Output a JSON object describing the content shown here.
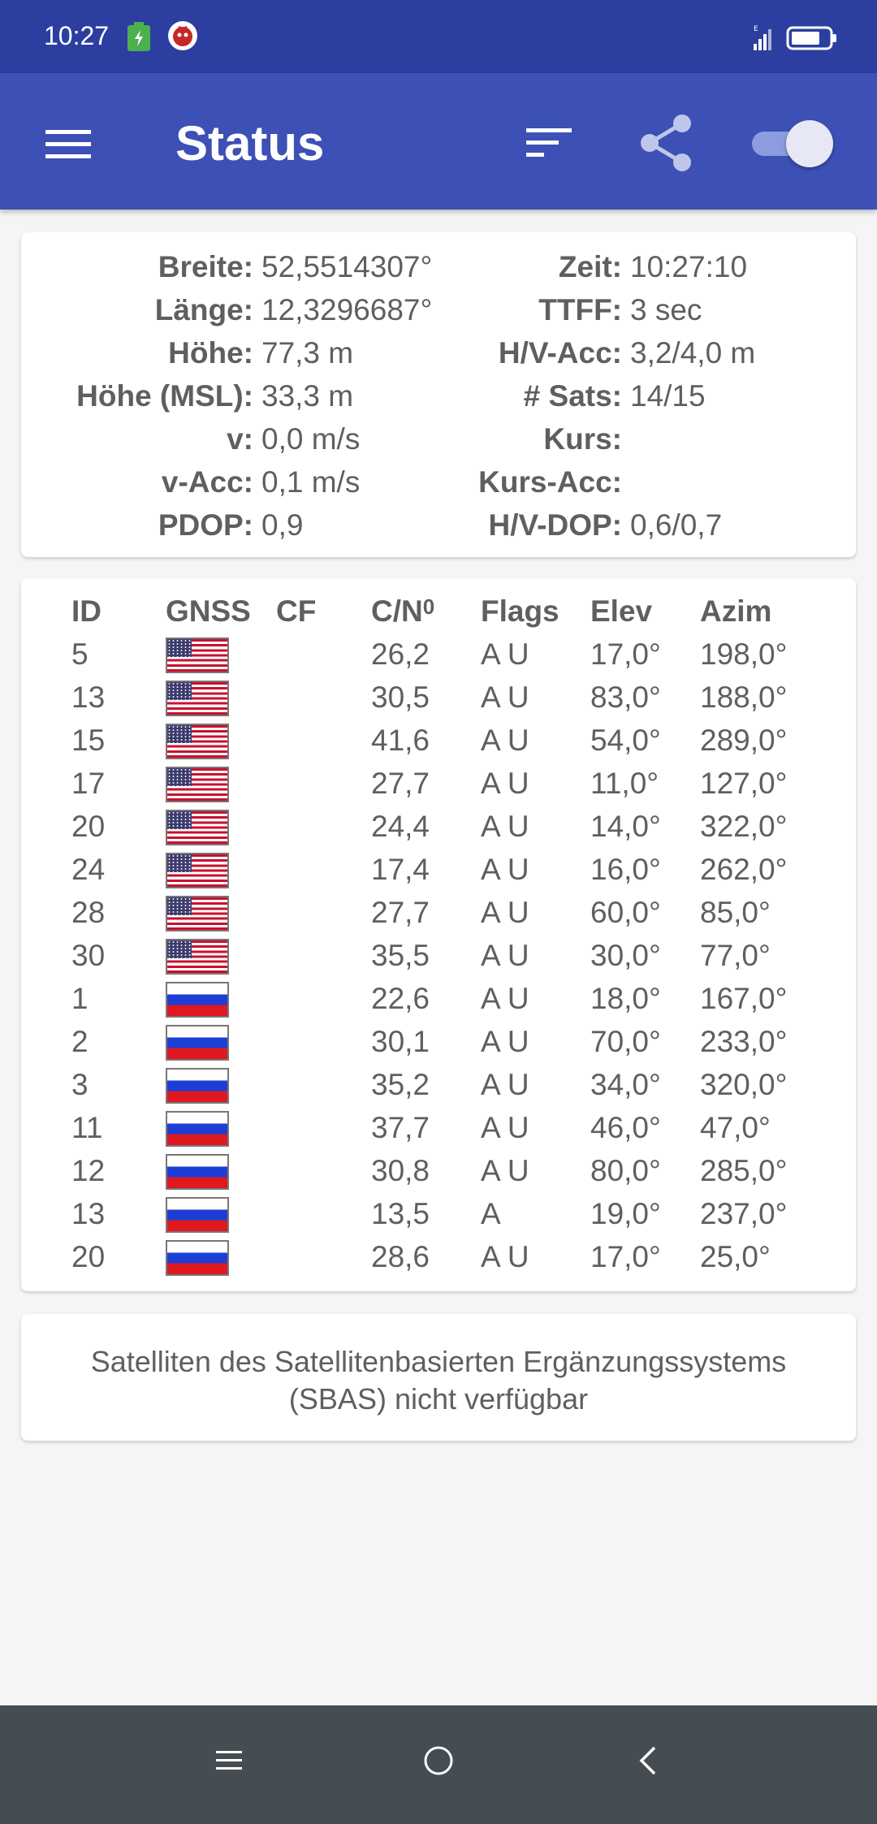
{
  "status_bar": {
    "time": "10:27"
  },
  "app_bar": {
    "title": "Status"
  },
  "position": {
    "rows": [
      {
        "label1": "Breite:",
        "value1": "52,5514307°",
        "label2": "Zeit:",
        "value2": "10:27:10"
      },
      {
        "label1": "Länge:",
        "value1": "12,3296687°",
        "label2": "TTFF:",
        "value2": "3 sec"
      },
      {
        "label1": "Höhe:",
        "value1": "77,3 m",
        "label2": "H/V-Acc:",
        "value2": "3,2/4,0 m"
      },
      {
        "label1": "Höhe (MSL):",
        "value1": "33,3 m",
        "label2": "# Sats:",
        "value2": "14/15"
      },
      {
        "label1": "v:",
        "value1": "0,0 m/s",
        "label2": "Kurs:",
        "value2": ""
      },
      {
        "label1": "v-Acc:",
        "value1": "0,1 m/s",
        "label2": "Kurs-Acc:",
        "value2": ""
      },
      {
        "label1": "PDOP:",
        "value1": "0,9",
        "label2": "H/V-DOP:",
        "value2": "0,6/0,7"
      }
    ]
  },
  "satellites": {
    "headers": {
      "id": "ID",
      "gnss": "GNSS",
      "cf": "CF",
      "cn": "C/N",
      "cn_sub": "0",
      "flags": "Flags",
      "elev": "Elev",
      "azim": "Azim"
    },
    "rows": [
      {
        "id": "5",
        "gnss": "us-flag-icon",
        "cf": "",
        "cn": "26,2",
        "flags": "A U",
        "elev": "17,0°",
        "azim": "198,0°"
      },
      {
        "id": "13",
        "gnss": "us-flag-icon",
        "cf": "",
        "cn": "30,5",
        "flags": "A U",
        "elev": "83,0°",
        "azim": "188,0°"
      },
      {
        "id": "15",
        "gnss": "us-flag-icon",
        "cf": "",
        "cn": "41,6",
        "flags": "A U",
        "elev": "54,0°",
        "azim": "289,0°"
      },
      {
        "id": "17",
        "gnss": "us-flag-icon",
        "cf": "",
        "cn": "27,7",
        "flags": "A U",
        "elev": "11,0°",
        "azim": "127,0°"
      },
      {
        "id": "20",
        "gnss": "us-flag-icon",
        "cf": "",
        "cn": "24,4",
        "flags": "A U",
        "elev": "14,0°",
        "azim": "322,0°"
      },
      {
        "id": "24",
        "gnss": "us-flag-icon",
        "cf": "",
        "cn": "17,4",
        "flags": "A U",
        "elev": "16,0°",
        "azim": "262,0°"
      },
      {
        "id": "28",
        "gnss": "us-flag-icon",
        "cf": "",
        "cn": "27,7",
        "flags": "A U",
        "elev": "60,0°",
        "azim": "85,0°"
      },
      {
        "id": "30",
        "gnss": "us-flag-icon",
        "cf": "",
        "cn": "35,5",
        "flags": "A U",
        "elev": "30,0°",
        "azim": "77,0°"
      },
      {
        "id": "1",
        "gnss": "ru-flag-icon",
        "cf": "",
        "cn": "22,6",
        "flags": "A U",
        "elev": "18,0°",
        "azim": "167,0°"
      },
      {
        "id": "2",
        "gnss": "ru-flag-icon",
        "cf": "",
        "cn": "30,1",
        "flags": "A U",
        "elev": "70,0°",
        "azim": "233,0°"
      },
      {
        "id": "3",
        "gnss": "ru-flag-icon",
        "cf": "",
        "cn": "35,2",
        "flags": "A U",
        "elev": "34,0°",
        "azim": "320,0°"
      },
      {
        "id": "11",
        "gnss": "ru-flag-icon",
        "cf": "",
        "cn": "37,7",
        "flags": "A U",
        "elev": "46,0°",
        "azim": "47,0°"
      },
      {
        "id": "12",
        "gnss": "ru-flag-icon",
        "cf": "",
        "cn": "30,8",
        "flags": "A U",
        "elev": "80,0°",
        "azim": "285,0°"
      },
      {
        "id": "13",
        "gnss": "ru-flag-icon",
        "cf": "",
        "cn": "13,5",
        "flags": "A",
        "elev": "19,0°",
        "azim": "237,0°"
      },
      {
        "id": "20",
        "gnss": "ru-flag-icon",
        "cf": "",
        "cn": "28,6",
        "flags": "A U",
        "elev": "17,0°",
        "azim": "25,0°"
      }
    ]
  },
  "sbas": {
    "message": "Satelliten des Satellitenbasierten Ergänzungssystems (SBAS) nicht verfügbar"
  },
  "colors": {
    "status_bar": "#2c3ea0",
    "app_bar": "#3d50b5",
    "nav_bar": "#464d52"
  },
  "icons": {
    "menu": "menu-icon",
    "sort": "sort-icon",
    "share": "share-icon",
    "toggle": "toggle-switch"
  }
}
